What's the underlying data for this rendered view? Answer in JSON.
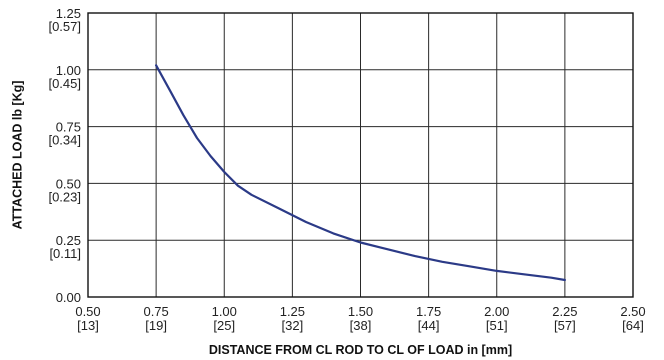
{
  "chart_data": {
    "type": "line",
    "xlabel": "DISTANCE FROM CL ROD TO CL OF LOAD in [mm]",
    "ylabel": "ATTACHED LOAD lb [Kg]",
    "xlim": [
      0.5,
      2.5
    ],
    "ylim": [
      0,
      1.25
    ],
    "grid": true,
    "x_ticks": [
      {
        "value": 0.5,
        "label": "0.50",
        "label2": "[13]"
      },
      {
        "value": 0.75,
        "label": "0.75",
        "label2": "[19]"
      },
      {
        "value": 1.0,
        "label": "1.00",
        "label2": "[25]"
      },
      {
        "value": 1.25,
        "label": "1.25",
        "label2": "[32]"
      },
      {
        "value": 1.5,
        "label": "1.50",
        "label2": "[38]"
      },
      {
        "value": 1.75,
        "label": "1.75",
        "label2": "[44]"
      },
      {
        "value": 2.0,
        "label": "2.00",
        "label2": "[51]"
      },
      {
        "value": 2.25,
        "label": "2.25",
        "label2": "[57]"
      },
      {
        "value": 2.5,
        "label": "2.50",
        "label2": "[64]"
      }
    ],
    "y_ticks": [
      {
        "value": 0,
        "label": "0.00",
        "label2": ""
      },
      {
        "value": 0.25,
        "label": "0.25",
        "label2": "[0.11]"
      },
      {
        "value": 0.5,
        "label": "0.50",
        "label2": "[0.23]"
      },
      {
        "value": 0.75,
        "label": "0.75",
        "label2": "[0.34]"
      },
      {
        "value": 1.0,
        "label": "1.00",
        "label2": "[0.45]"
      },
      {
        "value": 1.25,
        "label": "1.25",
        "label2": "[0.57]"
      }
    ],
    "series": [
      {
        "color": "#2b3a87",
        "x": [
          0.75,
          0.8,
          0.85,
          0.9,
          0.95,
          1.0,
          1.05,
          1.1,
          1.2,
          1.3,
          1.4,
          1.5,
          1.6,
          1.7,
          1.8,
          1.9,
          2.0,
          2.1,
          2.2,
          2.25
        ],
        "y": [
          1.02,
          0.91,
          0.8,
          0.7,
          0.62,
          0.55,
          0.49,
          0.45,
          0.39,
          0.33,
          0.28,
          0.24,
          0.21,
          0.18,
          0.155,
          0.135,
          0.115,
          0.1,
          0.085,
          0.075
        ]
      }
    ]
  }
}
